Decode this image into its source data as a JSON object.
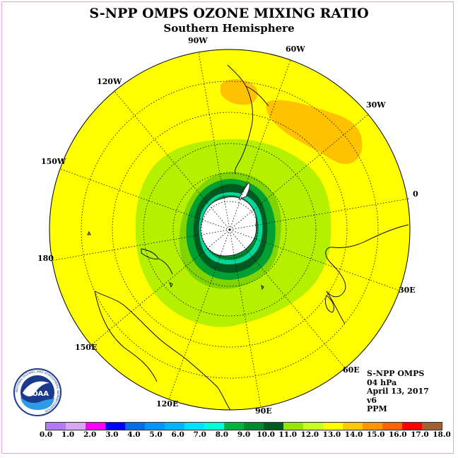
{
  "header": {
    "title": "S-NPP OMPS OZONE MIXING RATIO",
    "subtitle": "Southern Hemisphere"
  },
  "map": {
    "projection": "polar stereographic",
    "hemisphere": "south",
    "longitude_labels": [
      "90W",
      "60W",
      "30W",
      "0",
      "30E",
      "60E",
      "90E",
      "120E",
      "150E",
      "180",
      "150W",
      "120W"
    ],
    "colors": {
      "yellow": "#ffff00",
      "orange": "#ffc200",
      "light_green": "#b4f000",
      "mid_green": "#00a033",
      "dark_green": "#005a20",
      "teal": "#00d79a",
      "antarctica": "#ffffff"
    }
  },
  "info_box": {
    "line1": "S-NPP OMPS",
    "line2": "04 hPa",
    "line3": "April 13, 2017",
    "line4": "v6",
    "line5": "PPM"
  },
  "logo": {
    "text": "NOAA",
    "ring_text": "NATIONAL OCEANIC AND ATMOSPHERIC ADMINISTRATION",
    "icon": "noaa-logo-icon"
  },
  "colorbar": {
    "colors": [
      "#b07bf5",
      "#d9a4f0",
      "#ff00ff",
      "#0000ff",
      "#006ee8",
      "#0096ff",
      "#00b4ff",
      "#00e0ff",
      "#00ffd4",
      "#00b43c",
      "#008a30",
      "#005a20",
      "#96e600",
      "#c8ff1e",
      "#ffff00",
      "#ffc800",
      "#ff9600",
      "#ff6400",
      "#ff0000",
      "#a06030"
    ],
    "tick_labels": [
      "0.0",
      "1.0",
      "2.0",
      "3.0",
      "4.0",
      "5.0",
      "6.0",
      "7.0",
      "8.0",
      "9.0",
      "10.0",
      "11.0",
      "12.0",
      "13.0",
      "14.0",
      "15.0",
      "16.0",
      "17.0",
      "18.0"
    ]
  }
}
